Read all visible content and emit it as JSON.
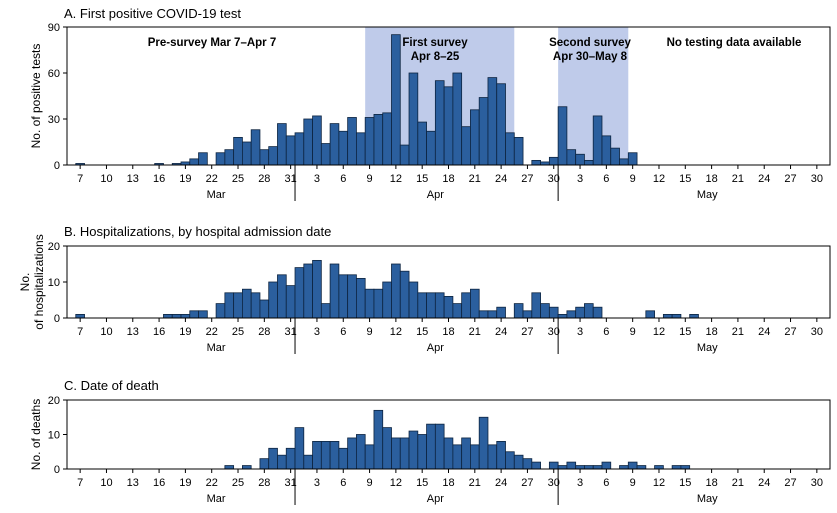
{
  "chart_data": [
    {
      "type": "bar",
      "title": "A. First positive COVID-19 test",
      "ylabel": "No. of positive tests",
      "ylim": [
        0,
        90
      ],
      "yticks": [
        "0",
        "30",
        "60",
        "90"
      ],
      "x_start": "Mar 6",
      "x_end": "Jun 1",
      "xtick_labels": [
        "7",
        "10",
        "13",
        "16",
        "19",
        "22",
        "25",
        "28",
        "31",
        "3",
        "6",
        "9",
        "12",
        "15",
        "18",
        "21",
        "24",
        "27",
        "30",
        "3",
        "6",
        "9",
        "12",
        "15",
        "18",
        "21",
        "24",
        "27",
        "30"
      ],
      "month_labels": [
        "Mar",
        "Apr",
        "May"
      ],
      "annotations": [
        {
          "lines": [
            "Pre-survey Mar 7–Apr 7"
          ]
        },
        {
          "lines": [
            "First survey",
            "Apr 8–25"
          ]
        },
        {
          "lines": [
            "Second survey",
            "Apr 30–May 8"
          ]
        },
        {
          "lines": [
            "No testing data available"
          ]
        }
      ],
      "shaded_days": [
        [
          34,
          51
        ],
        [
          56,
          64
        ]
      ],
      "values": [
        0,
        1,
        0,
        0,
        0,
        0,
        0,
        0,
        0,
        0,
        1,
        0,
        1,
        2,
        4,
        8,
        0,
        8,
        10,
        18,
        15,
        23,
        10,
        12,
        27,
        19,
        21,
        30,
        32,
        14,
        27,
        22,
        31,
        21,
        31,
        33,
        34,
        85,
        13,
        60,
        28,
        22,
        55,
        51,
        60,
        25,
        36,
        44,
        57,
        53,
        21,
        18,
        0,
        3,
        2,
        5,
        38,
        10,
        7,
        3,
        32,
        19,
        11,
        4,
        8
      ]
    },
    {
      "type": "bar",
      "title": "B. Hospitalizations, by hospital admission date",
      "ylabel": "No. of hospitalizations",
      "ylim": [
        0,
        20
      ],
      "yticks": [
        "0",
        "10",
        "20"
      ],
      "x_start": "Mar 6",
      "x_end": "Jun 1",
      "xtick_labels": [
        "7",
        "10",
        "13",
        "16",
        "19",
        "22",
        "25",
        "28",
        "31",
        "3",
        "6",
        "9",
        "12",
        "15",
        "18",
        "21",
        "24",
        "27",
        "30",
        "3",
        "6",
        "9",
        "12",
        "15",
        "18",
        "21",
        "24",
        "27",
        "30"
      ],
      "month_labels": [
        "Mar",
        "Apr",
        "May"
      ],
      "values": [
        0,
        1,
        0,
        0,
        0,
        0,
        0,
        0,
        0,
        0,
        0,
        1,
        1,
        1,
        2,
        2,
        0,
        4,
        7,
        7,
        8,
        7,
        5,
        10,
        12,
        9,
        14,
        15,
        16,
        4,
        15,
        12,
        12,
        11,
        8,
        8,
        10,
        15,
        13,
        10,
        7,
        7,
        7,
        6,
        4,
        7,
        8,
        2,
        2,
        3,
        0,
        4,
        2,
        7,
        4,
        3,
        1,
        2,
        3,
        4,
        3,
        0,
        0,
        0,
        0,
        0,
        2,
        0,
        1,
        1,
        0,
        1
      ]
    },
    {
      "type": "bar",
      "title": "C. Date of death",
      "ylabel": "No. of deaths",
      "ylim": [
        0,
        20
      ],
      "yticks": [
        "0",
        "10",
        "20"
      ],
      "x_start": "Mar 6",
      "x_end": "Jun 1",
      "xtick_labels": [
        "7",
        "10",
        "13",
        "16",
        "19",
        "22",
        "25",
        "28",
        "31",
        "3",
        "6",
        "9",
        "12",
        "15",
        "18",
        "21",
        "24",
        "27",
        "30",
        "3",
        "6",
        "9",
        "12",
        "15",
        "18",
        "21",
        "24",
        "27",
        "30"
      ],
      "month_labels": [
        "Mar",
        "Apr",
        "May"
      ],
      "values": [
        0,
        0,
        0,
        0,
        0,
        0,
        0,
        0,
        0,
        0,
        0,
        0,
        0,
        0,
        0,
        0,
        0,
        0,
        1,
        0,
        1,
        0,
        3,
        6,
        4,
        6,
        12,
        4,
        8,
        8,
        8,
        6,
        9,
        10,
        7,
        17,
        12,
        9,
        9,
        11,
        10,
        13,
        13,
        9,
        7,
        9,
        7,
        15,
        7,
        8,
        5,
        4,
        3,
        2,
        0,
        2,
        1,
        2,
        1,
        1,
        1,
        2,
        0,
        1,
        2,
        1,
        0,
        1,
        0,
        1,
        1
      ]
    }
  ]
}
